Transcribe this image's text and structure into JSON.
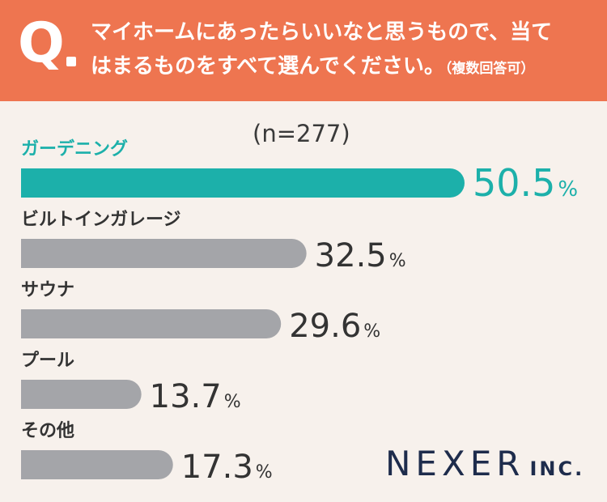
{
  "header": {
    "q_mark": "Q",
    "line1": "マイホームにあったらいいなと思うもので、当て",
    "line2": "はまるものをすべて選んでください。",
    "note": "（複数回答可）"
  },
  "chart_data": {
    "type": "bar",
    "orientation": "horizontal",
    "sample_label": "(n=277)",
    "categories": [
      "ガーデニング",
      "ビルトインガレージ",
      "サウナ",
      "プール",
      "その他"
    ],
    "values": [
      50.5,
      32.5,
      29.6,
      13.7,
      17.3
    ],
    "value_labels": [
      "50.5",
      "32.5",
      "29.6",
      "13.7",
      "17.3"
    ],
    "unit": "%",
    "highlight_index": 0,
    "colors": {
      "highlight": "#1cb0aa",
      "default": "#a4a5a9",
      "label_default": "#333333",
      "value_default": "#333333"
    }
  },
  "brand": {
    "name": "NEXER",
    "suffix": "INC."
  }
}
